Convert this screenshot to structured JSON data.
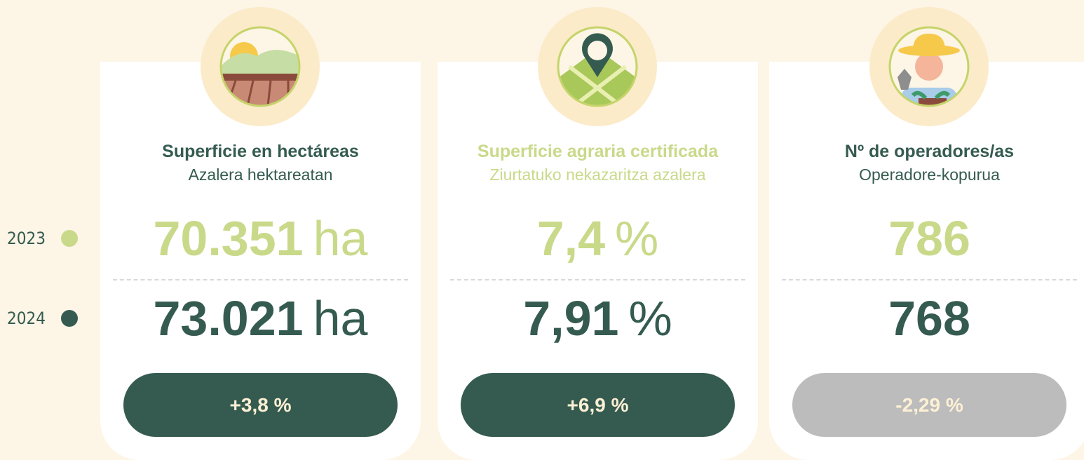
{
  "legend": [
    "2023",
    "2024"
  ],
  "cards": [
    {
      "title": "Superficie en hectáreas",
      "subtitle": "Azalera hektareatan",
      "value_2023": "70.351",
      "unit_2023": "ha",
      "value_2024": "73.021",
      "unit_2024": "ha",
      "change": "+3,8 %"
    },
    {
      "title": "Superficie agraria certificada",
      "subtitle": "Ziurtatuko nekazaritza azalera",
      "value_2023": "7,4",
      "unit_2023": "%",
      "value_2024": "7,91",
      "unit_2024": "%",
      "change": "+6,9 %"
    },
    {
      "title": "Nº de operadores/as",
      "subtitle": "Operadore-kopurua",
      "value_2023": "786",
      "value_2024": "768",
      "change": "-2,29 %"
    }
  ]
}
